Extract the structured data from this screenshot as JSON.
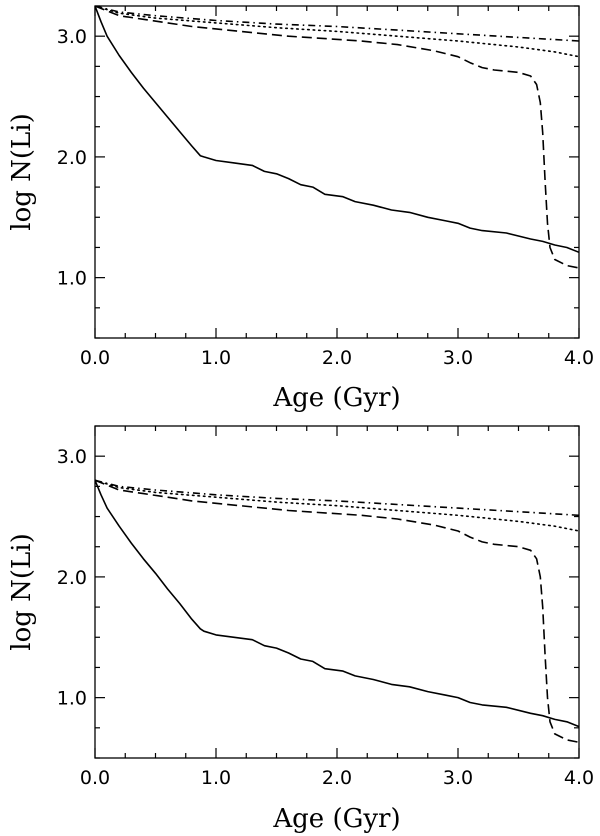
{
  "chart_data": [
    {
      "type": "line",
      "title": "",
      "xlabel": "Age (Gyr)",
      "ylabel": "log N(Li)",
      "xlim": [
        0.0,
        4.0
      ],
      "ylim": [
        0.5,
        3.25
      ],
      "xticks": [
        0.0,
        1.0,
        2.0,
        3.0,
        4.0
      ],
      "xtick_labels": [
        "0.0",
        "1.0",
        "2.0",
        "3.0",
        "4.0"
      ],
      "yticks": [
        1.0,
        2.0,
        3.0
      ],
      "ytick_labels": [
        "1.0",
        "2.0",
        "3.0"
      ],
      "series": [
        {
          "name": "solid",
          "style": "solid",
          "points": [
            [
              0.0,
              3.25
            ],
            [
              0.05,
              3.12
            ],
            [
              0.1,
              3.0
            ],
            [
              0.2,
              2.84
            ],
            [
              0.3,
              2.7
            ],
            [
              0.4,
              2.57
            ],
            [
              0.5,
              2.45
            ],
            [
              0.6,
              2.33
            ],
            [
              0.7,
              2.21
            ],
            [
              0.8,
              2.09
            ],
            [
              0.87,
              2.01
            ],
            [
              0.9,
              2.0
            ],
            [
              1.0,
              1.97
            ],
            [
              1.15,
              1.95
            ],
            [
              1.3,
              1.93
            ],
            [
              1.4,
              1.88
            ],
            [
              1.5,
              1.86
            ],
            [
              1.6,
              1.82
            ],
            [
              1.7,
              1.77
            ],
            [
              1.8,
              1.75
            ],
            [
              1.9,
              1.69
            ],
            [
              2.05,
              1.67
            ],
            [
              2.15,
              1.63
            ],
            [
              2.3,
              1.6
            ],
            [
              2.45,
              1.56
            ],
            [
              2.6,
              1.54
            ],
            [
              2.75,
              1.5
            ],
            [
              2.9,
              1.47
            ],
            [
              3.0,
              1.45
            ],
            [
              3.1,
              1.41
            ],
            [
              3.2,
              1.39
            ],
            [
              3.4,
              1.37
            ],
            [
              3.6,
              1.32
            ],
            [
              3.7,
              1.3
            ],
            [
              3.8,
              1.27
            ],
            [
              3.9,
              1.25
            ],
            [
              4.0,
              1.21
            ]
          ]
        },
        {
          "name": "dashed",
          "style": "dashed",
          "points": [
            [
              0.0,
              3.25
            ],
            [
              0.2,
              3.17
            ],
            [
              0.4,
              3.14
            ],
            [
              0.6,
              3.11
            ],
            [
              0.8,
              3.08
            ],
            [
              1.0,
              3.06
            ],
            [
              1.3,
              3.03
            ],
            [
              1.6,
              3.0
            ],
            [
              1.9,
              2.98
            ],
            [
              2.2,
              2.96
            ],
            [
              2.5,
              2.93
            ],
            [
              2.8,
              2.88
            ],
            [
              3.0,
              2.83
            ],
            [
              3.1,
              2.78
            ],
            [
              3.2,
              2.74
            ],
            [
              3.3,
              2.72
            ],
            [
              3.5,
              2.7
            ],
            [
              3.6,
              2.67
            ],
            [
              3.65,
              2.6
            ],
            [
              3.68,
              2.45
            ],
            [
              3.7,
              2.2
            ],
            [
              3.72,
              1.8
            ],
            [
              3.74,
              1.45
            ],
            [
              3.76,
              1.25
            ],
            [
              3.8,
              1.15
            ],
            [
              3.9,
              1.1
            ],
            [
              4.0,
              1.08
            ]
          ]
        },
        {
          "name": "dotted",
          "style": "dotted",
          "points": [
            [
              0.0,
              3.25
            ],
            [
              0.2,
              3.19
            ],
            [
              0.5,
              3.15
            ],
            [
              1.0,
              3.11
            ],
            [
              1.5,
              3.07
            ],
            [
              2.0,
              3.04
            ],
            [
              2.5,
              3.0
            ],
            [
              3.0,
              2.96
            ],
            [
              3.5,
              2.91
            ],
            [
              3.8,
              2.87
            ],
            [
              4.0,
              2.83
            ]
          ]
        },
        {
          "name": "dash-dot",
          "style": "dashdot",
          "points": [
            [
              0.0,
              3.25
            ],
            [
              0.2,
              3.2
            ],
            [
              0.5,
              3.17
            ],
            [
              1.0,
              3.13
            ],
            [
              1.5,
              3.1
            ],
            [
              2.0,
              3.08
            ],
            [
              2.5,
              3.05
            ],
            [
              3.0,
              3.02
            ],
            [
              3.5,
              2.99
            ],
            [
              4.0,
              2.96
            ]
          ]
        }
      ]
    },
    {
      "type": "line",
      "title": "",
      "xlabel": "Age (Gyr)",
      "ylabel": "log N(Li)",
      "xlim": [
        0.0,
        4.0
      ],
      "ylim": [
        0.5,
        3.25
      ],
      "xticks": [
        0.0,
        1.0,
        2.0,
        3.0,
        4.0
      ],
      "xtick_labels": [
        "0.0",
        "1.0",
        "2.0",
        "3.0",
        "4.0"
      ],
      "yticks": [
        1.0,
        2.0,
        3.0
      ],
      "ytick_labels": [
        "1.0",
        "2.0",
        "3.0"
      ],
      "series": [
        {
          "name": "solid",
          "style": "solid",
          "points": [
            [
              0.0,
              2.8
            ],
            [
              0.05,
              2.68
            ],
            [
              0.1,
              2.57
            ],
            [
              0.2,
              2.42
            ],
            [
              0.3,
              2.28
            ],
            [
              0.4,
              2.15
            ],
            [
              0.5,
              2.03
            ],
            [
              0.6,
              1.9
            ],
            [
              0.7,
              1.78
            ],
            [
              0.8,
              1.65
            ],
            [
              0.87,
              1.57
            ],
            [
              0.9,
              1.55
            ],
            [
              1.0,
              1.52
            ],
            [
              1.15,
              1.5
            ],
            [
              1.3,
              1.48
            ],
            [
              1.4,
              1.43
            ],
            [
              1.5,
              1.41
            ],
            [
              1.6,
              1.37
            ],
            [
              1.7,
              1.32
            ],
            [
              1.8,
              1.3
            ],
            [
              1.9,
              1.24
            ],
            [
              2.05,
              1.22
            ],
            [
              2.15,
              1.18
            ],
            [
              2.3,
              1.15
            ],
            [
              2.45,
              1.11
            ],
            [
              2.6,
              1.09
            ],
            [
              2.75,
              1.05
            ],
            [
              2.9,
              1.02
            ],
            [
              3.0,
              1.0
            ],
            [
              3.1,
              0.96
            ],
            [
              3.2,
              0.94
            ],
            [
              3.4,
              0.92
            ],
            [
              3.6,
              0.87
            ],
            [
              3.7,
              0.85
            ],
            [
              3.8,
              0.82
            ],
            [
              3.9,
              0.8
            ],
            [
              4.0,
              0.76
            ]
          ]
        },
        {
          "name": "dashed",
          "style": "dashed",
          "points": [
            [
              0.0,
              2.8
            ],
            [
              0.2,
              2.72
            ],
            [
              0.4,
              2.69
            ],
            [
              0.6,
              2.66
            ],
            [
              0.8,
              2.63
            ],
            [
              1.0,
              2.61
            ],
            [
              1.3,
              2.58
            ],
            [
              1.6,
              2.55
            ],
            [
              1.9,
              2.53
            ],
            [
              2.2,
              2.51
            ],
            [
              2.5,
              2.48
            ],
            [
              2.8,
              2.43
            ],
            [
              3.0,
              2.38
            ],
            [
              3.1,
              2.33
            ],
            [
              3.2,
              2.29
            ],
            [
              3.3,
              2.27
            ],
            [
              3.5,
              2.25
            ],
            [
              3.6,
              2.22
            ],
            [
              3.65,
              2.15
            ],
            [
              3.68,
              2.0
            ],
            [
              3.7,
              1.75
            ],
            [
              3.72,
              1.35
            ],
            [
              3.74,
              1.0
            ],
            [
              3.76,
              0.8
            ],
            [
              3.8,
              0.7
            ],
            [
              3.9,
              0.65
            ],
            [
              4.0,
              0.63
            ]
          ]
        },
        {
          "name": "dotted",
          "style": "dotted",
          "points": [
            [
              0.0,
              2.8
            ],
            [
              0.2,
              2.74
            ],
            [
              0.5,
              2.7
            ],
            [
              1.0,
              2.66
            ],
            [
              1.5,
              2.62
            ],
            [
              2.0,
              2.59
            ],
            [
              2.5,
              2.55
            ],
            [
              3.0,
              2.51
            ],
            [
              3.5,
              2.46
            ],
            [
              3.8,
              2.42
            ],
            [
              4.0,
              2.38
            ]
          ]
        },
        {
          "name": "dash-dot",
          "style": "dashdot",
          "points": [
            [
              0.0,
              2.8
            ],
            [
              0.2,
              2.75
            ],
            [
              0.5,
              2.72
            ],
            [
              1.0,
              2.68
            ],
            [
              1.5,
              2.65
            ],
            [
              2.0,
              2.63
            ],
            [
              2.5,
              2.6
            ],
            [
              3.0,
              2.57
            ],
            [
              3.5,
              2.54
            ],
            [
              4.0,
              2.51
            ]
          ]
        }
      ]
    }
  ]
}
